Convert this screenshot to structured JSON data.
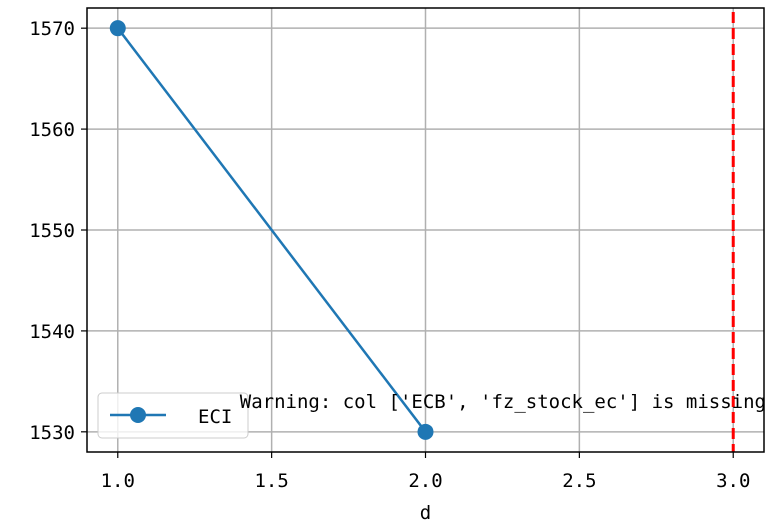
{
  "chart_data": {
    "type": "line",
    "title": "",
    "xlabel": "d",
    "ylabel": "",
    "xlim": [
      0.9,
      3.1
    ],
    "ylim": [
      1528,
      1572
    ],
    "xticks": [
      1.0,
      1.5,
      2.0,
      2.5,
      3.0
    ],
    "xtick_labels": [
      "1.0",
      "1.5",
      "2.0",
      "2.5",
      "3.0"
    ],
    "yticks": [
      1530,
      1540,
      1550,
      1560,
      1570
    ],
    "ytick_labels": [
      "1530",
      "1540",
      "1550",
      "1560",
      "1570"
    ],
    "grid": true,
    "legend_position": "lower-left",
    "series": [
      {
        "name": "ECI",
        "color": "#1f77b4",
        "marker": "circle",
        "x": [
          1.0,
          2.0
        ],
        "y": [
          1570,
          1530
        ]
      }
    ],
    "vline": {
      "x": 3.0,
      "color": "#ff0000",
      "style": "dashed"
    },
    "annotation": "Warning: col ['ECB', 'fz_stock_ec'] is missing"
  }
}
